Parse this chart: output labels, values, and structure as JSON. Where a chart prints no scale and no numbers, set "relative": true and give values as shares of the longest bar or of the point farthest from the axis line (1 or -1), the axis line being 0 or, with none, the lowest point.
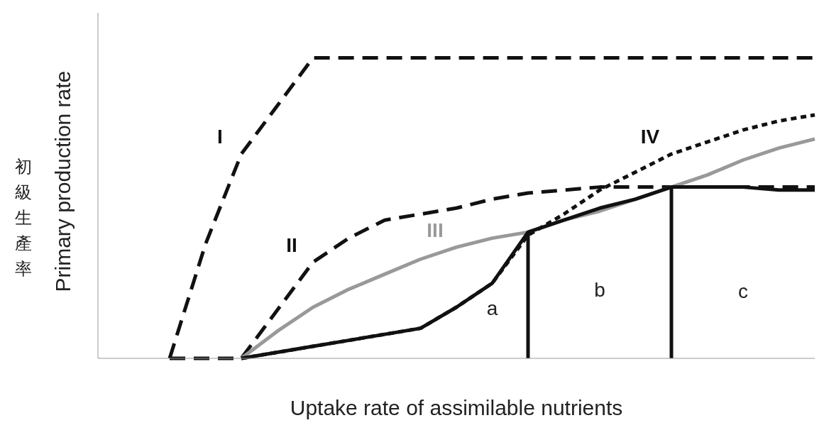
{
  "chart_data": {
    "type": "line",
    "relative": true,
    "xlabel": "Uptake rate of assimilable nutrients",
    "ylabel": "Primary production rate",
    "categories": [
      null,
      null,
      null,
      null,
      null,
      null,
      null,
      null,
      null,
      null,
      null,
      null,
      null,
      null,
      null,
      null,
      null,
      null,
      null,
      null,
      null
    ],
    "grid": false,
    "marker": "none",
    "series": [
      {
        "name": "I",
        "color": "#111111",
        "line_style": "dashed",
        "values": [
          null,
          null,
          0,
          0.38,
          0.68,
          0.84,
          1,
          1,
          1,
          1,
          1,
          1,
          1,
          1,
          1,
          1,
          1,
          1,
          1,
          1,
          1
        ]
      },
      {
        "name": "II",
        "color": "#111111",
        "line_style": "dashed",
        "values": [
          null,
          null,
          0,
          0,
          0,
          0.16,
          0.32,
          0.4,
          0.46,
          0.48,
          0.5,
          0.53,
          0.55,
          0.56,
          0.57,
          0.57,
          0.57,
          0.57,
          0.57,
          0.57,
          0.57
        ]
      },
      {
        "name": "III",
        "color": "#999999",
        "line_style": "solid",
        "values": [
          null,
          null,
          null,
          null,
          0,
          0.09,
          0.17,
          0.23,
          0.28,
          0.33,
          0.37,
          0.4,
          0.42,
          0.46,
          0.49,
          0.53,
          0.57,
          0.61,
          0.66,
          0.7,
          0.73
        ]
      },
      {
        "name": "IV",
        "color": "#111111",
        "line_style": "dotted",
        "values": [
          null,
          null,
          null,
          null,
          0,
          0.02,
          0.04,
          0.06,
          0.08,
          0.1,
          0.17,
          0.25,
          0.41,
          0.48,
          0.56,
          0.62,
          0.68,
          0.72,
          0.76,
          0.79,
          0.81
        ]
      },
      {
        "color": "#111111",
        "line_style": "solid",
        "values": [
          null,
          null,
          null,
          null,
          0,
          0.02,
          0.04,
          0.06,
          0.08,
          0.1,
          0.17,
          0.25,
          0.42,
          0.46,
          0.5,
          0.53,
          0.57,
          0.57,
          0.57,
          0.56,
          0.56
        ]
      }
    ],
    "annotations": [
      "初級生產率",
      "a",
      "b",
      "c"
    ]
  }
}
